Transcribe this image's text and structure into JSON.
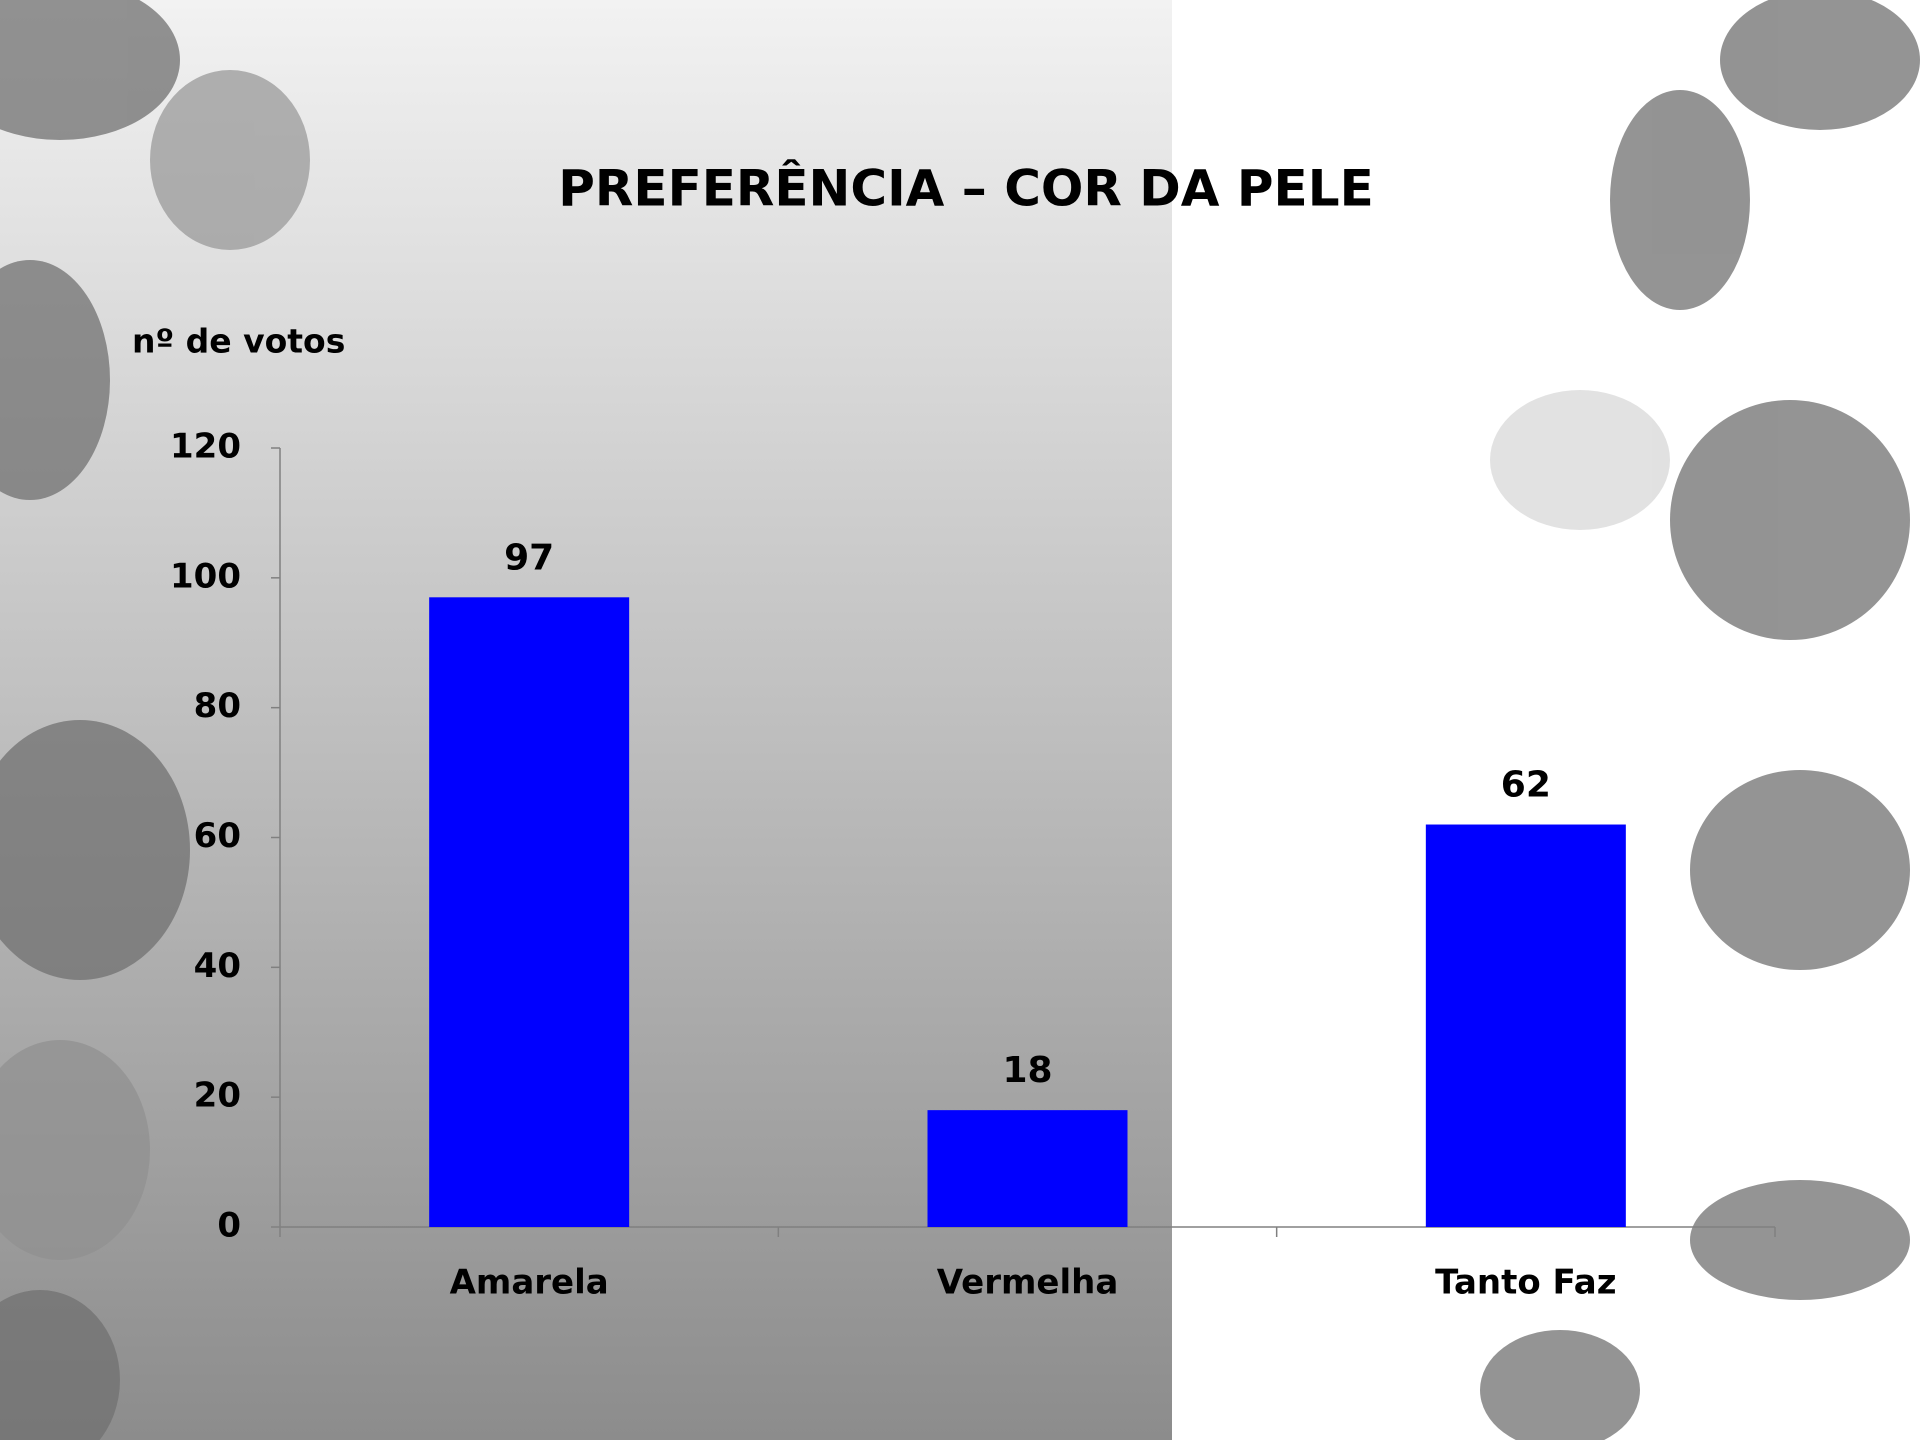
{
  "chart_data": {
    "type": "bar",
    "title": "PREFERÊNCIA – COR DA PELE",
    "y_label": "nº de votos",
    "categories": [
      "Amarela",
      "Vermelha",
      "Tanto Faz"
    ],
    "values": [
      97,
      18,
      62
    ],
    "color": "#0000ff",
    "ylim": [
      0,
      120
    ],
    "yticks": [
      0,
      20,
      40,
      60,
      80,
      100,
      120
    ]
  }
}
